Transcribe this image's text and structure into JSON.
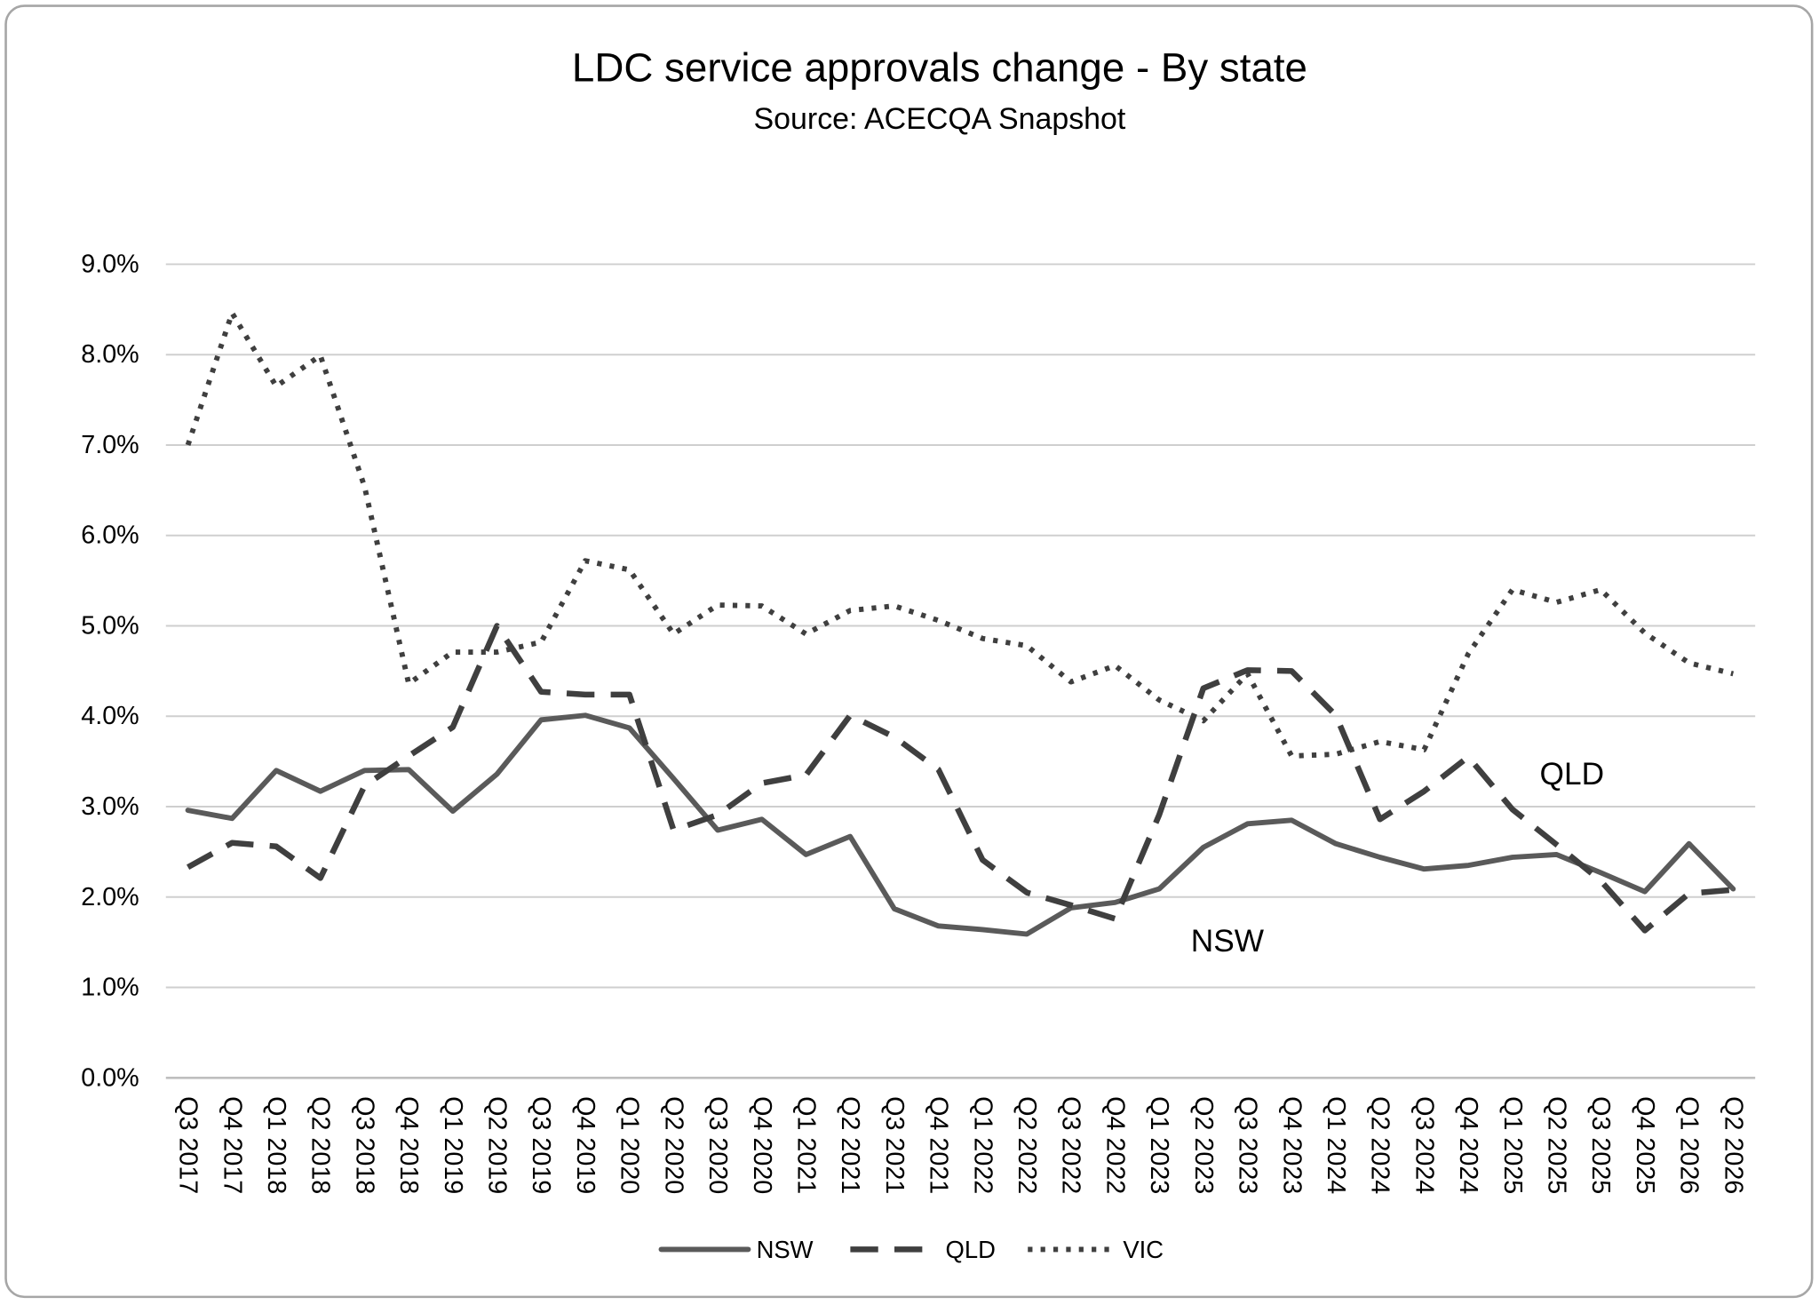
{
  "chart_data": {
    "type": "line",
    "title": "LDC service approvals change - By state",
    "subtitle": "Source: ACECQA Snapshot",
    "xlabel": "",
    "ylabel": "",
    "categories": [
      "Q3 2017",
      "Q4 2017",
      "Q1 2018",
      "Q2 2018",
      "Q3 2018",
      "Q4 2018",
      "Q1 2019",
      "Q2 2019",
      "Q3 2019",
      "Q4 2019",
      "Q1 2020",
      "Q2 2020",
      "Q3 2020",
      "Q4 2020",
      "Q1 2021",
      "Q2 2021",
      "Q3 2021",
      "Q4 2021",
      "Q1 2022",
      "Q2 2022",
      "Q3 2022",
      "Q4 2022",
      "Q1 2023",
      "Q2 2023",
      "Q3 2023",
      "Q4 2023",
      "Q1 2024",
      "Q2 2024",
      "Q3 2024",
      "Q4 2024",
      "Q1 2025",
      "Q2 2025",
      "Q3 2025",
      "Q4 2025",
      "Q1 2026",
      "Q2 2026"
    ],
    "series": [
      {
        "name": "NSW",
        "style": "solid",
        "color": "#5a5a5a",
        "values": [
          2.96,
          2.87,
          3.4,
          3.17,
          3.4,
          3.41,
          2.95,
          3.36,
          3.96,
          4.01,
          3.87,
          3.31,
          2.74,
          2.86,
          2.47,
          2.67,
          1.87,
          1.68,
          1.64,
          1.59,
          1.88,
          1.94,
          2.09,
          2.55,
          2.81,
          2.85,
          2.59,
          2.44,
          2.31,
          2.35,
          2.44,
          2.47,
          2.27,
          2.06,
          2.59,
          2.09
        ]
      },
      {
        "name": "QLD",
        "style": "dashed",
        "color": "#3f3f3f",
        "values": [
          2.33,
          2.6,
          2.56,
          2.21,
          3.23,
          3.56,
          3.88,
          5.0,
          4.27,
          4.24,
          4.24,
          2.74,
          2.91,
          3.26,
          3.35,
          4.01,
          3.77,
          3.41,
          2.41,
          2.05,
          1.91,
          1.76,
          2.91,
          4.31,
          4.51,
          4.5,
          4.01,
          2.86,
          3.17,
          3.55,
          2.97,
          2.58,
          2.18,
          1.63,
          2.04,
          2.08
        ]
      },
      {
        "name": "VIC",
        "style": "dotted",
        "color": "#3f3f3f",
        "values": [
          7.0,
          8.46,
          7.65,
          7.99,
          6.54,
          4.36,
          4.71,
          4.71,
          4.82,
          5.72,
          5.62,
          4.91,
          5.23,
          5.22,
          4.91,
          5.17,
          5.22,
          5.06,
          4.86,
          4.78,
          4.38,
          4.56,
          4.18,
          3.95,
          4.47,
          3.56,
          3.58,
          3.72,
          3.63,
          4.69,
          5.4,
          5.26,
          5.4,
          4.92,
          4.59,
          4.47
        ]
      }
    ],
    "ylim": [
      0,
      9
    ],
    "y_ticks": [
      0,
      1,
      2,
      3,
      4,
      5,
      6,
      7,
      8,
      9
    ],
    "y_tick_labels": [
      "0.0%",
      "1.0%",
      "2.0%",
      "3.0%",
      "4.0%",
      "5.0%",
      "6.0%",
      "7.0%",
      "8.0%",
      "9.0%"
    ],
    "grid": true,
    "legend": {
      "placement": "bottom",
      "entries": [
        "NSW",
        "QLD",
        "VIC"
      ]
    },
    "annotations": [
      {
        "text": "QLD",
        "series": "QLD"
      },
      {
        "text": "NSW",
        "series": "NSW"
      }
    ]
  },
  "colors": {
    "background": "#ffffff",
    "frame": "#a6a6a6",
    "grid": "#cfcfcf",
    "axis": "#bfbfbf",
    "text": "#000000"
  }
}
